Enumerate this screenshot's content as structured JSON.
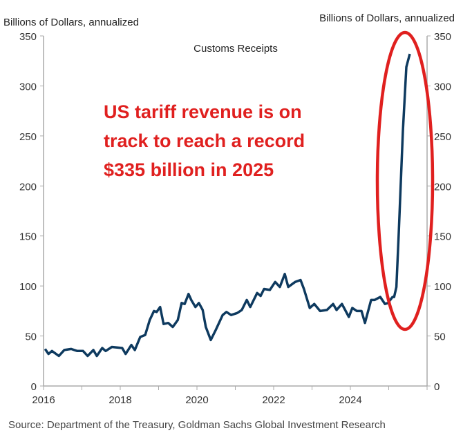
{
  "chart_data": {
    "type": "line",
    "title": "Customs Receipts",
    "ylabel_left": "Billions of Dollars, annualized",
    "ylabel_right": "Billions of Dollars, annualized",
    "xlabel": "",
    "xlim": [
      2016,
      2026
    ],
    "ylim": [
      0,
      350
    ],
    "x_tick_labels": [
      "2016",
      "2018",
      "2020",
      "2022",
      "2024"
    ],
    "y_tick_labels": [
      "0",
      "50",
      "100",
      "150",
      "200",
      "250",
      "300",
      "350"
    ],
    "grid": false,
    "annotation": [
      "US tariff revenue is on",
      "track to reach a record",
      "$335 billion in 2025"
    ],
    "highlight": "red ellipse around 2025 surge",
    "source": "Source: Department of the Treasury, Goldman Sachs Global Investment Research",
    "colors": {
      "line": "#0e3a5f",
      "annotation": "#e0201f",
      "axis": "#aaaaaa"
    },
    "series": [
      {
        "x": [
          2016.04,
          2016.13,
          2016.22,
          2016.4,
          2016.54,
          2016.72,
          2016.88,
          2017.03,
          2017.15,
          2017.3,
          2017.39,
          2017.53,
          2017.62,
          2017.78,
          2018.05,
          2018.14,
          2018.29,
          2018.38,
          2018.52,
          2018.65,
          2018.77,
          2018.88,
          2018.95,
          2019.04,
          2019.13,
          2019.25,
          2019.37,
          2019.5,
          2019.6,
          2019.68,
          2019.78,
          2019.85,
          2019.96,
          2020.05,
          2020.15,
          2020.23,
          2020.36,
          2020.49,
          2020.67,
          2020.77,
          2020.89,
          2021.05,
          2021.17,
          2021.3,
          2021.39,
          2021.57,
          2021.66,
          2021.75,
          2021.9,
          2022.04,
          2022.16,
          2022.29,
          2022.38,
          2022.56,
          2022.7,
          2022.79,
          2022.94,
          2023.06,
          2023.21,
          2023.39,
          2023.55,
          2023.64,
          2023.78,
          2023.96,
          2024.05,
          2024.17,
          2024.29,
          2024.38,
          2024.54,
          2024.63,
          2024.78,
          2024.9,
          2024.98,
          2025.1,
          2025.14,
          2025.2,
          2025.26,
          2025.37,
          2025.46,
          2025.55
        ],
        "y": [
          37,
          32,
          35,
          30,
          36,
          37,
          35,
          35,
          30,
          36,
          30,
          38,
          35,
          39,
          38,
          32,
          41,
          36,
          49,
          51,
          66,
          75,
          74,
          79,
          62,
          63,
          59,
          66,
          83,
          82,
          92,
          86,
          79,
          83,
          76,
          59,
          46,
          56,
          71,
          74,
          71,
          73,
          76,
          86,
          79,
          93,
          90,
          97,
          96,
          104,
          99,
          112,
          99,
          104,
          106,
          97,
          78,
          82,
          75,
          76,
          82,
          76,
          82,
          69,
          78,
          75,
          75,
          63,
          86,
          86,
          89,
          82,
          83,
          89,
          89,
          99,
          151,
          255,
          319,
          332
        ]
      }
    ]
  }
}
